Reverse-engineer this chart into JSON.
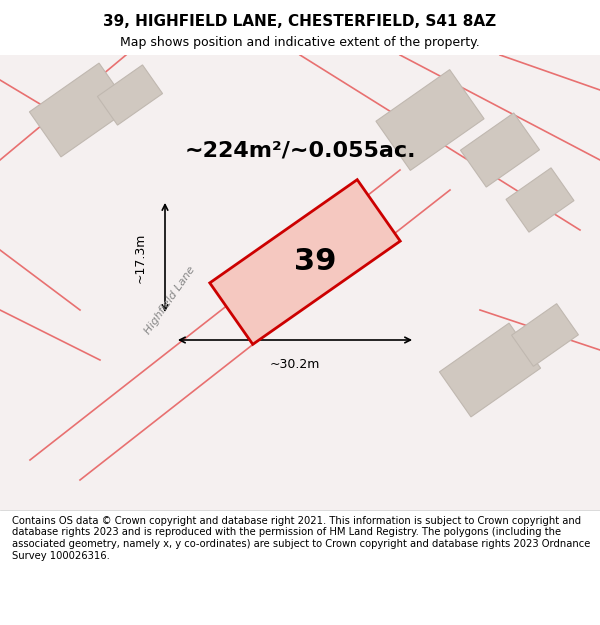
{
  "title": "39, HIGHFIELD LANE, CHESTERFIELD, S41 8AZ",
  "subtitle": "Map shows position and indicative extent of the property.",
  "area_text": "~224m²/~0.055ac.",
  "number_label": "39",
  "dim_width": "~30.2m",
  "dim_height": "~17.3m",
  "street_label": "Highfield Lane",
  "footer": "Contains OS data © Crown copyright and database right 2021. This information is subject to Crown copyright and database rights 2023 and is reproduced with the permission of HM Land Registry. The polygons (including the associated geometry, namely x, y co-ordinates) are subject to Crown copyright and database rights 2023 Ordnance Survey 100026316.",
  "bg_color": "#f5f0f0",
  "map_bg": "#f5f0f0",
  "plot_fill": "#f5c8c0",
  "plot_edge": "#cc0000",
  "road_lines_color": "#e87070",
  "building_fill": "#d0c8c0",
  "building_edge": "#c0b8b0",
  "title_fontsize": 11,
  "subtitle_fontsize": 9,
  "footer_fontsize": 7.2
}
